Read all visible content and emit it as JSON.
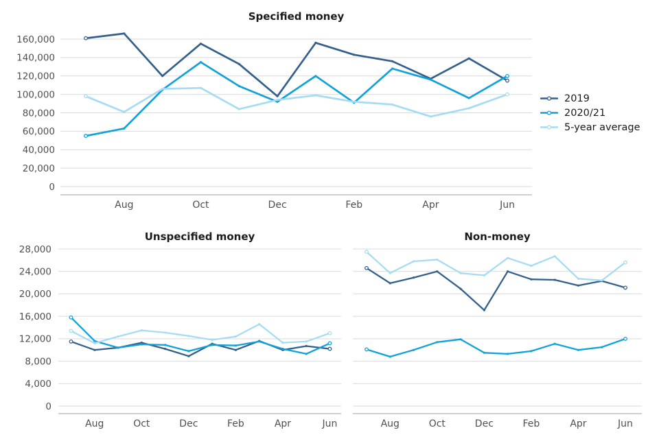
{
  "colors": {
    "background": "#ffffff",
    "grid": "#d9d9d9",
    "axis": "#b3b3b3",
    "tick_label": "#4f4f4f",
    "title": "#1a1a1a"
  },
  "legend": {
    "position": "right-of-first-chart",
    "items": [
      {
        "label": "2019",
        "color": "#335f8d"
      },
      {
        "label": "2020/21",
        "color": "#0fa1da"
      },
      {
        "label": "5-year average",
        "color": "#a6dcf3"
      }
    ]
  },
  "chart_data": [
    {
      "type": "line",
      "title": "Specified money",
      "n_points": 12,
      "x_tick_labels": [
        "Aug",
        "Oct",
        "Dec",
        "Feb",
        "Apr",
        "Jun"
      ],
      "x_tick_indices": [
        1,
        3,
        5,
        7,
        9,
        11
      ],
      "ylim": [
        0,
        160000
      ],
      "ytick_step": 20000,
      "ytick_labels": [
        "0",
        "20,000",
        "40,000",
        "60,000",
        "80,000",
        "100,000",
        "120,000",
        "140,000",
        "160,000"
      ],
      "grid": true,
      "series": [
        {
          "name": "2019",
          "color": "#335f8d",
          "values": [
            161000,
            166000,
            120000,
            155000,
            133000,
            98000,
            156000,
            143000,
            136000,
            117000,
            139000,
            115000
          ]
        },
        {
          "name": "2020/21",
          "color": "#0fa1da",
          "values": [
            55000,
            63000,
            105000,
            135000,
            109000,
            92000,
            120000,
            91000,
            128000,
            116000,
            96000,
            120000
          ]
        },
        {
          "name": "5-year average",
          "color": "#a6dcf3",
          "values": [
            98000,
            81000,
            106000,
            107000,
            84000,
            94000,
            99000,
            92000,
            89000,
            76000,
            85000,
            100000
          ]
        }
      ]
    },
    {
      "type": "line",
      "title": "Unspecified money",
      "n_points": 12,
      "x_tick_labels": [
        "Aug",
        "Oct",
        "Dec",
        "Feb",
        "Apr",
        "Jun"
      ],
      "x_tick_indices": [
        1,
        3,
        5,
        7,
        9,
        11
      ],
      "ylim": [
        0,
        28000
      ],
      "ytick_step": 4000,
      "ytick_labels": [
        "0",
        "4,000",
        "8,000",
        "12,000",
        "16,000",
        "20,000",
        "24,000",
        "28,000"
      ],
      "grid": true,
      "series": [
        {
          "name": "2019",
          "color": "#335f8d",
          "values": [
            11500,
            10000,
            10400,
            11300,
            10200,
            8900,
            11100,
            10000,
            11600,
            10000,
            10700,
            10200
          ]
        },
        {
          "name": "2020/21",
          "color": "#0fa1da",
          "values": [
            15800,
            11600,
            10400,
            11000,
            10900,
            9800,
            10900,
            10800,
            11500,
            10200,
            9300,
            11200
          ]
        },
        {
          "name": "5-year average",
          "color": "#a6dcf3",
          "values": [
            13400,
            11200,
            12400,
            13500,
            13100,
            12500,
            11800,
            12400,
            14600,
            11300,
            11500,
            13000
          ]
        }
      ]
    },
    {
      "type": "line",
      "title": "Non-money",
      "n_points": 12,
      "x_tick_labels": [
        "Aug",
        "Oct",
        "Dec",
        "Feb",
        "Apr",
        "Jun"
      ],
      "x_tick_indices": [
        1,
        3,
        5,
        7,
        9,
        11
      ],
      "ylim": [
        0,
        28000
      ],
      "ytick_step": 4000,
      "ytick_labels": [],
      "grid": true,
      "series": [
        {
          "name": "2019",
          "color": "#335f8d",
          "values": [
            24600,
            21900,
            22900,
            24000,
            20900,
            17100,
            24000,
            22600,
            22500,
            21500,
            22300,
            21100
          ]
        },
        {
          "name": "2020/21",
          "color": "#0fa1da",
          "values": [
            10100,
            8800,
            10000,
            11400,
            11900,
            9500,
            9300,
            9800,
            11100,
            10000,
            10500,
            12000
          ]
        },
        {
          "name": "5-year average",
          "color": "#a6dcf3",
          "values": [
            27500,
            23700,
            25800,
            26100,
            23700,
            23300,
            26400,
            25000,
            26700,
            22700,
            22400,
            25600
          ]
        }
      ]
    }
  ]
}
